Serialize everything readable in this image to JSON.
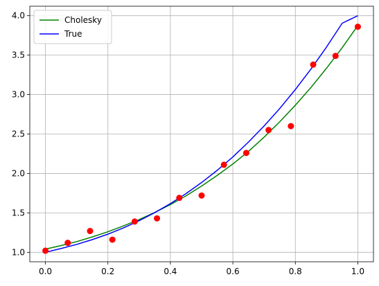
{
  "chart_data": {
    "type": "line",
    "title": "",
    "xlabel": "",
    "ylabel": "",
    "xlim": [
      -0.05,
      1.05
    ],
    "ylim": [
      0.88,
      4.12
    ],
    "grid": true,
    "legend_position": "top-left",
    "x_ticks": [
      "0.0",
      "0.2",
      "0.4",
      "0.6",
      "0.8",
      "1.0"
    ],
    "y_ticks": [
      "1.0",
      "1.5",
      "2.0",
      "2.5",
      "3.0",
      "3.5",
      "4.0"
    ],
    "series": [
      {
        "name": "Cholesky",
        "kind": "line",
        "color": "#008000",
        "x": [
          0.0,
          0.05,
          0.1,
          0.15,
          0.2,
          0.25,
          0.3,
          0.35,
          0.4,
          0.45,
          0.5,
          0.55,
          0.6,
          0.65,
          0.7,
          0.75,
          0.8,
          0.85,
          0.9,
          0.95,
          1.0
        ],
        "y": [
          1.04,
          1.085,
          1.135,
          1.195,
          1.26,
          1.335,
          1.415,
          1.505,
          1.605,
          1.715,
          1.84,
          1.975,
          2.12,
          2.28,
          2.46,
          2.655,
          2.865,
          3.09,
          3.335,
          3.595,
          3.875
        ]
      },
      {
        "name": "True",
        "kind": "line",
        "color": "#0000ff",
        "x": [
          0.0,
          0.05,
          0.1,
          0.15,
          0.2,
          0.25,
          0.3,
          0.35,
          0.4,
          0.45,
          0.5,
          0.55,
          0.6,
          0.65,
          0.7,
          0.75,
          0.8,
          0.85,
          0.9,
          0.95,
          1.0
        ],
        "y": [
          1.0,
          1.048,
          1.1,
          1.161,
          1.23,
          1.31,
          1.401,
          1.503,
          1.617,
          1.744,
          1.885,
          2.04,
          2.21,
          2.398,
          2.602,
          2.823,
          3.064,
          3.324,
          3.604,
          3.905,
          4.0
        ]
      },
      {
        "name": "",
        "kind": "scatter",
        "color": "#ff0000",
        "x": [
          0.0,
          0.0714,
          0.1429,
          0.2143,
          0.2857,
          0.3571,
          0.4286,
          0.5,
          0.5714,
          0.6429,
          0.7143,
          0.7857,
          0.8571,
          0.9286,
          1.0
        ],
        "y": [
          1.02,
          1.12,
          1.27,
          1.16,
          1.39,
          1.43,
          1.69,
          1.72,
          2.11,
          2.26,
          2.55,
          2.6,
          3.38,
          3.49,
          3.86
        ]
      }
    ]
  }
}
